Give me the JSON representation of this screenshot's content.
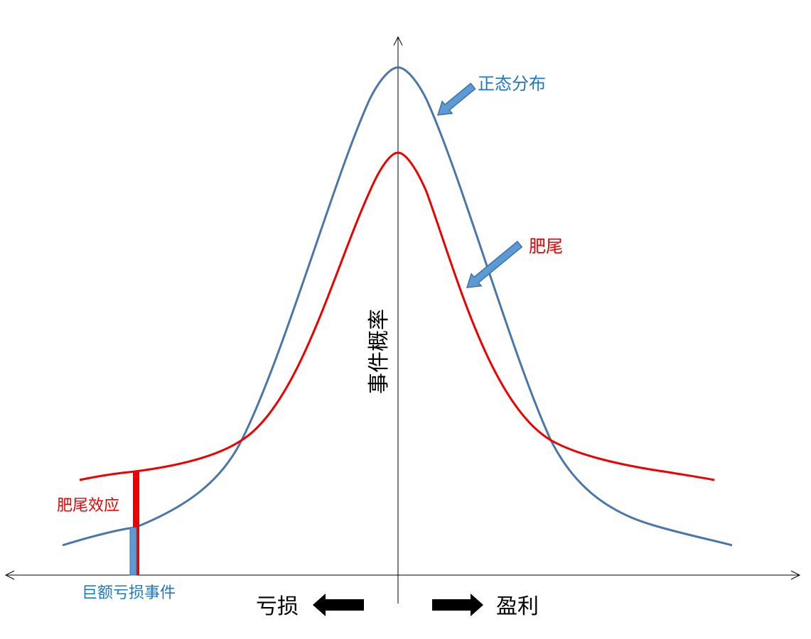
{
  "labels": {
    "normal": "正态分布",
    "fat_tail": "肥尾",
    "fat_tail_effect": "肥尾效应",
    "huge_loss": "巨额亏损事件",
    "y_axis": "事件概率",
    "loss": "亏损",
    "profit": "盈利"
  },
  "colors": {
    "normal": "#4a76a8",
    "fat_tail": "#ee0000",
    "normal_label": "#1f77c4",
    "fat_tail_label": "#ee0000",
    "arrow_fill": "#5b9bd5",
    "arrow_stroke": "#41719c",
    "axis": "#000000"
  },
  "icons": {
    "pointer_arrow": "block-arrow-icon",
    "left_arrow": "left-block-arrow-icon",
    "right_arrow": "right-block-arrow-icon"
  }
}
